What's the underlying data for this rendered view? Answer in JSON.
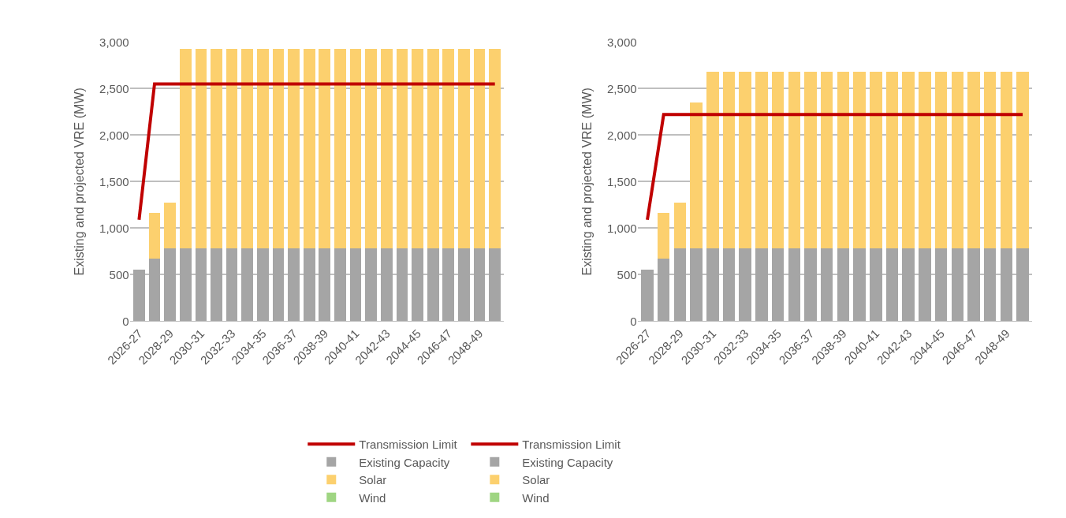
{
  "chart_data": [
    {
      "type": "bar",
      "stacked": true,
      "ylabel": "Existing and projected VRE (MW)",
      "ylim": [
        0,
        3000
      ],
      "yticks": [
        {
          "value": 0,
          "label": "0"
        },
        {
          "value": 500,
          "label": "500"
        },
        {
          "value": 1000,
          "label": "1,000"
        },
        {
          "value": 1500,
          "label": "1,500"
        },
        {
          "value": 2000,
          "label": "2,000"
        },
        {
          "value": 2500,
          "label": "2,500"
        },
        {
          "value": 3000,
          "label": "3,000"
        }
      ],
      "grid": "y",
      "legend": "bottom",
      "categories": [
        "2026-27",
        null,
        "2028-29",
        null,
        "2030-31",
        null,
        "2032-33",
        null,
        "2034-35",
        null,
        "2036-37",
        null,
        "2038-39",
        null,
        "2040-41",
        null,
        "2042-43",
        null,
        "2044-45",
        null,
        "2046-47",
        null,
        "2048-49",
        null
      ],
      "series": [
        {
          "name": "Existing Capacity",
          "color": "#a5a5a5",
          "values": [
            550,
            675,
            780,
            780,
            780,
            780,
            780,
            780,
            780,
            780,
            780,
            780,
            780,
            780,
            780,
            780,
            780,
            780,
            780,
            780,
            780,
            780,
            780,
            780
          ]
        },
        {
          "name": "Solar",
          "color": "#fcd06e",
          "values": [
            0,
            485,
            490,
            2150,
            2150,
            2150,
            2150,
            2150,
            2150,
            2150,
            2150,
            2150,
            2150,
            2150,
            2150,
            2150,
            2150,
            2150,
            2150,
            2150,
            2150,
            2150,
            2150,
            2150
          ]
        },
        {
          "name": "Wind",
          "color": "#9fd582",
          "values": [
            0,
            0,
            0,
            0,
            0,
            0,
            0,
            0,
            0,
            0,
            0,
            0,
            0,
            0,
            0,
            0,
            0,
            0,
            0,
            0,
            0,
            0,
            0,
            0
          ]
        },
        {
          "name": "Transmission Limit",
          "type": "line",
          "color": "#c00000",
          "values": [
            1090,
            2550,
            2550,
            2550,
            2550,
            2550,
            2550,
            2550,
            2550,
            2550,
            2550,
            2550,
            2550,
            2550,
            2550,
            2550,
            2550,
            2550,
            2550,
            2550,
            2550,
            2550,
            2550,
            2550
          ]
        }
      ]
    },
    {
      "type": "bar",
      "stacked": true,
      "ylabel": "Existing and projected VRE (MW)",
      "ylim": [
        0,
        3000
      ],
      "yticks": [
        {
          "value": 0,
          "label": "0"
        },
        {
          "value": 500,
          "label": "500"
        },
        {
          "value": 1000,
          "label": "1,000"
        },
        {
          "value": 1500,
          "label": "1,500"
        },
        {
          "value": 2000,
          "label": "2,000"
        },
        {
          "value": 2500,
          "label": "2,500"
        },
        {
          "value": 3000,
          "label": "3,000"
        }
      ],
      "grid": "y",
      "legend": "bottom",
      "categories": [
        "2026-27",
        null,
        "2028-29",
        null,
        "2030-31",
        null,
        "2032-33",
        null,
        "2034-35",
        null,
        "2036-37",
        null,
        "2038-39",
        null,
        "2040-41",
        null,
        "2042-43",
        null,
        "2044-45",
        null,
        "2046-47",
        null,
        "2048-49",
        null
      ],
      "series": [
        {
          "name": "Existing Capacity",
          "color": "#a5a5a5",
          "values": [
            550,
            675,
            780,
            780,
            780,
            780,
            780,
            780,
            780,
            780,
            780,
            780,
            780,
            780,
            780,
            780,
            780,
            780,
            780,
            780,
            780,
            780,
            780,
            780
          ]
        },
        {
          "name": "Solar",
          "color": "#fcd06e",
          "values": [
            0,
            485,
            490,
            1570,
            1900,
            1900,
            1900,
            1900,
            1900,
            1900,
            1900,
            1900,
            1900,
            1900,
            1900,
            1900,
            1900,
            1900,
            1900,
            1900,
            1900,
            1900,
            1900,
            1900
          ]
        },
        {
          "name": "Wind",
          "color": "#9fd582",
          "values": [
            0,
            0,
            0,
            0,
            0,
            0,
            0,
            0,
            0,
            0,
            0,
            0,
            0,
            0,
            0,
            0,
            0,
            0,
            0,
            0,
            0,
            0,
            0,
            0
          ]
        },
        {
          "name": "Transmission Limit",
          "type": "line",
          "color": "#c00000",
          "values": [
            1090,
            2220,
            2220,
            2220,
            2220,
            2220,
            2220,
            2220,
            2220,
            2220,
            2220,
            2220,
            2220,
            2220,
            2220,
            2220,
            2220,
            2220,
            2220,
            2220,
            2220,
            2220,
            2220,
            2220
          ]
        }
      ]
    }
  ]
}
